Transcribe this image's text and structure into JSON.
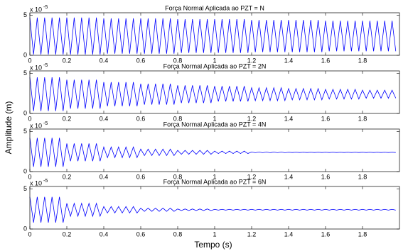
{
  "xlabel": "Tempo (s)",
  "ylabel": "Amplitude (m)",
  "chart_data": [
    {
      "type": "line",
      "title": "Força Normal Aplicada ao PZT = N",
      "color": "#0000ff",
      "y_scale_base": "x 10",
      "y_scale_exponent": "-5",
      "xlim": [
        0,
        2
      ],
      "xticks": [
        0,
        0.2,
        0.4,
        0.6,
        0.8,
        1,
        1.2,
        1.4,
        1.6,
        1.8
      ],
      "ylim": [
        0,
        5.3
      ],
      "yticks": [
        0,
        5
      ],
      "x": [
        0,
        0.02,
        0.04,
        0.06,
        0.08,
        0.1,
        0.12,
        0.14,
        0.16,
        0.18,
        0.2,
        0.22,
        0.24,
        0.26,
        0.28,
        0.3,
        0.32,
        0.34,
        0.36,
        0.38,
        0.4,
        0.42,
        0.44,
        0.46,
        0.48,
        0.5,
        0.52,
        0.54,
        0.56,
        0.58,
        0.6,
        0.62,
        0.64,
        0.66,
        0.68,
        0.7,
        0.72,
        0.74,
        0.76,
        0.78,
        0.8,
        0.82,
        0.84,
        0.86,
        0.88,
        0.9,
        0.92,
        0.94,
        0.96,
        0.98,
        1,
        1.02,
        1.04,
        1.06,
        1.08,
        1.1,
        1.12,
        1.14,
        1.16,
        1.18,
        1.2,
        1.22,
        1.24,
        1.26,
        1.28,
        1.3,
        1.32,
        1.34,
        1.36,
        1.38,
        1.4,
        1.42,
        1.44,
        1.46,
        1.48,
        1.5,
        1.52,
        1.54,
        1.56,
        1.58,
        1.6,
        1.62,
        1.64,
        1.66,
        1.68,
        1.7,
        1.72,
        1.74,
        1.76,
        1.78,
        1.8,
        1.82,
        1.84,
        1.86,
        1.88,
        1.9,
        1.92,
        1.94,
        1.96,
        1.98
      ],
      "values": [
        4.7,
        0.1,
        4.7,
        0.1,
        4.7,
        0.1,
        4.7,
        0.1,
        4.7,
        0.1,
        4.7,
        0.1,
        4.7,
        0.1,
        4.7,
        0.1,
        4.7,
        0.1,
        4.7,
        0.1,
        4.6,
        0.2,
        4.6,
        0.2,
        4.6,
        0.2,
        4.6,
        0.2,
        4.6,
        0.2,
        4.6,
        0.2,
        4.6,
        0.2,
        4.6,
        0.2,
        4.6,
        0.2,
        4.6,
        0.2,
        4.5,
        0.3,
        4.5,
        0.3,
        4.5,
        0.3,
        4.5,
        0.3,
        4.5,
        0.3,
        4.5,
        0.3,
        4.5,
        0.3,
        4.5,
        0.3,
        4.5,
        0.3,
        4.5,
        0.3,
        4.4,
        0.4,
        4.4,
        0.4,
        4.4,
        0.4,
        4.4,
        0.4,
        4.4,
        0.4,
        4.4,
        0.4,
        4.4,
        0.4,
        4.4,
        0.4,
        4.4,
        0.4,
        4.4,
        0.4,
        4.3,
        0.5,
        4.3,
        0.5,
        4.3,
        0.5,
        4.3,
        0.5,
        4.3,
        0.5,
        4.3,
        0.5,
        4.3,
        0.5,
        4.3,
        0.5,
        4.3,
        0.5,
        4.3,
        0.5
      ]
    },
    {
      "type": "line",
      "title": "Força Normal Aplicada ao PZT = 2N",
      "color": "#0000ff",
      "y_scale_base": "x 10",
      "y_scale_exponent": "-5",
      "xlim": [
        0,
        2
      ],
      "xticks": [
        0,
        0.2,
        0.4,
        0.6,
        0.8,
        1,
        1.2,
        1.4,
        1.6,
        1.8
      ],
      "ylim": [
        0,
        5.3
      ],
      "yticks": [
        0,
        5
      ],
      "x": [
        0,
        0.02,
        0.04,
        0.06,
        0.08,
        0.1,
        0.12,
        0.14,
        0.16,
        0.18,
        0.2,
        0.22,
        0.24,
        0.26,
        0.28,
        0.3,
        0.32,
        0.34,
        0.36,
        0.38,
        0.4,
        0.42,
        0.44,
        0.46,
        0.48,
        0.5,
        0.52,
        0.54,
        0.56,
        0.58,
        0.6,
        0.62,
        0.64,
        0.66,
        0.68,
        0.7,
        0.72,
        0.74,
        0.76,
        0.78,
        0.8,
        0.82,
        0.84,
        0.86,
        0.88,
        0.9,
        0.92,
        0.94,
        0.96,
        0.98,
        1,
        1.02,
        1.04,
        1.06,
        1.08,
        1.1,
        1.12,
        1.14,
        1.16,
        1.18,
        1.2,
        1.22,
        1.24,
        1.26,
        1.28,
        1.3,
        1.32,
        1.34,
        1.36,
        1.38,
        1.4,
        1.42,
        1.44,
        1.46,
        1.48,
        1.5,
        1.52,
        1.54,
        1.56,
        1.58,
        1.6,
        1.62,
        1.64,
        1.66,
        1.68,
        1.7,
        1.72,
        1.74,
        1.76,
        1.78,
        1.8,
        1.82,
        1.84,
        1.86,
        1.88,
        1.9,
        1.92,
        1.94,
        1.96,
        1.98
      ],
      "values": [
        4.5,
        0.3,
        4.5,
        0.3,
        4.5,
        0.3,
        4.5,
        0.3,
        4.5,
        0.3,
        4.2,
        0.6,
        4.2,
        0.6,
        4.2,
        0.6,
        4.2,
        0.6,
        4.2,
        0.6,
        3.9,
        0.9,
        3.9,
        0.9,
        3.9,
        0.9,
        3.9,
        0.9,
        3.9,
        0.9,
        3.7,
        1.1,
        3.7,
        1.1,
        3.7,
        1.1,
        3.7,
        1.1,
        3.7,
        1.1,
        3.5,
        1.3,
        3.5,
        1.3,
        3.5,
        1.3,
        3.5,
        1.3,
        3.5,
        1.3,
        3.4,
        1.5,
        3.4,
        1.5,
        3.4,
        1.5,
        3.4,
        1.5,
        3.4,
        1.5,
        3.2,
        1.6,
        3.2,
        1.6,
        3.2,
        1.6,
        3.2,
        1.6,
        3.2,
        1.6,
        3.1,
        1.7,
        3.1,
        1.7,
        3.1,
        1.7,
        3.1,
        1.7,
        3.1,
        1.7,
        3.0,
        1.8,
        3.0,
        1.8,
        3.0,
        1.8,
        3.0,
        1.8,
        3.0,
        1.8,
        2.9,
        1.9,
        2.9,
        1.9,
        2.9,
        1.9,
        2.9,
        1.9,
        2.9,
        1.9
      ]
    },
    {
      "type": "line",
      "title": "Força Normal Aplicada ao PZT = 4N",
      "color": "#0000ff",
      "y_scale_base": "x 10",
      "y_scale_exponent": "-5",
      "xlim": [
        0,
        2
      ],
      "xticks": [
        0,
        0.2,
        0.4,
        0.6,
        0.8,
        1,
        1.2,
        1.4,
        1.6,
        1.8
      ],
      "ylim": [
        0,
        5.3
      ],
      "yticks": [
        0,
        5
      ],
      "x": [
        0,
        0.02,
        0.04,
        0.06,
        0.08,
        0.1,
        0.12,
        0.14,
        0.16,
        0.18,
        0.2,
        0.22,
        0.24,
        0.26,
        0.28,
        0.3,
        0.32,
        0.34,
        0.36,
        0.38,
        0.4,
        0.42,
        0.44,
        0.46,
        0.48,
        0.5,
        0.52,
        0.54,
        0.56,
        0.58,
        0.6,
        0.62,
        0.64,
        0.66,
        0.68,
        0.7,
        0.72,
        0.74,
        0.76,
        0.78,
        0.8,
        0.82,
        0.84,
        0.86,
        0.88,
        0.9,
        0.92,
        0.94,
        0.96,
        0.98,
        1,
        1.02,
        1.04,
        1.06,
        1.08,
        1.1,
        1.12,
        1.14,
        1.16,
        1.18,
        1.2,
        1.22,
        1.24,
        1.26,
        1.28,
        1.3,
        1.32,
        1.34,
        1.36,
        1.38,
        1.4,
        1.42,
        1.44,
        1.46,
        1.48,
        1.5,
        1.52,
        1.54,
        1.56,
        1.58,
        1.6,
        1.62,
        1.64,
        1.66,
        1.68,
        1.7,
        1.72,
        1.74,
        1.76,
        1.78,
        1.8,
        1.82,
        1.84,
        1.86,
        1.88,
        1.9,
        1.92,
        1.94,
        1.96,
        1.98
      ],
      "values": [
        4.2,
        0.6,
        4.2,
        0.6,
        4.2,
        0.6,
        4.2,
        0.6,
        4.2,
        0.6,
        3.5,
        1.3,
        3.5,
        1.3,
        3.5,
        1.3,
        3.5,
        1.3,
        3.5,
        1.3,
        3.06,
        1.74,
        3.06,
        1.74,
        3.06,
        1.74,
        3.06,
        1.74,
        3.06,
        1.74,
        2.8,
        2.0,
        2.8,
        2.0,
        2.8,
        2.0,
        2.8,
        2.0,
        2.8,
        2.0,
        2.64,
        2.16,
        2.64,
        2.16,
        2.64,
        2.16,
        2.64,
        2.16,
        2.64,
        2.16,
        2.55,
        2.25,
        2.55,
        2.25,
        2.55,
        2.25,
        2.55,
        2.25,
        2.55,
        2.25,
        2.45,
        2.35,
        2.45,
        2.35,
        2.45,
        2.35,
        2.45,
        2.35,
        2.45,
        2.35,
        2.42,
        2.38,
        2.42,
        2.38,
        2.42,
        2.38,
        2.42,
        2.38,
        2.42,
        2.38,
        2.42,
        2.38,
        2.42,
        2.38,
        2.42,
        2.38,
        2.42,
        2.38,
        2.42,
        2.38,
        2.42,
        2.38,
        2.42,
        2.38,
        2.42,
        2.38,
        2.42,
        2.38,
        2.42,
        2.38
      ]
    },
    {
      "type": "line",
      "title": "Força Normal Aplicada ao PZT = 6N",
      "color": "#0000ff",
      "y_scale_base": "x 10",
      "y_scale_exponent": "-5",
      "xlim": [
        0,
        2
      ],
      "xticks": [
        0,
        0.2,
        0.4,
        0.6,
        0.8,
        1,
        1.2,
        1.4,
        1.6,
        1.8
      ],
      "ylim": [
        0,
        5.3
      ],
      "yticks": [
        0,
        5
      ],
      "x": [
        0,
        0.02,
        0.04,
        0.06,
        0.08,
        0.1,
        0.12,
        0.14,
        0.16,
        0.18,
        0.2,
        0.22,
        0.24,
        0.26,
        0.28,
        0.3,
        0.32,
        0.34,
        0.36,
        0.38,
        0.4,
        0.42,
        0.44,
        0.46,
        0.48,
        0.5,
        0.52,
        0.54,
        0.56,
        0.58,
        0.6,
        0.62,
        0.64,
        0.66,
        0.68,
        0.7,
        0.72,
        0.74,
        0.76,
        0.78,
        0.8,
        0.82,
        0.84,
        0.86,
        0.88,
        0.9,
        0.92,
        0.94,
        0.96,
        0.98,
        1,
        1.02,
        1.04,
        1.06,
        1.08,
        1.1,
        1.12,
        1.14,
        1.16,
        1.18,
        1.2,
        1.22,
        1.24,
        1.26,
        1.28,
        1.3,
        1.32,
        1.34,
        1.36,
        1.38,
        1.4,
        1.42,
        1.44,
        1.46,
        1.48,
        1.5,
        1.52,
        1.54,
        1.56,
        1.58,
        1.6,
        1.62,
        1.64,
        1.66,
        1.68,
        1.7,
        1.72,
        1.74,
        1.76,
        1.78,
        1.8,
        1.82,
        1.84,
        1.86,
        1.88,
        1.9,
        1.92,
        1.94,
        1.96,
        1.98
      ],
      "values": [
        4.0,
        0.8,
        4.0,
        0.8,
        4.0,
        0.8,
        4.0,
        0.8,
        4.0,
        0.8,
        3.2,
        1.6,
        3.2,
        1.6,
        3.2,
        1.6,
        3.2,
        1.6,
        3.2,
        1.6,
        2.8,
        2.0,
        2.8,
        2.0,
        2.8,
        2.0,
        2.8,
        2.0,
        2.8,
        2.0,
        2.6,
        2.2,
        2.6,
        2.2,
        2.6,
        2.2,
        2.6,
        2.2,
        2.6,
        2.2,
        2.5,
        2.3,
        2.5,
        2.3,
        2.5,
        2.3,
        2.5,
        2.3,
        2.5,
        2.3,
        2.45,
        2.35,
        2.45,
        2.35,
        2.45,
        2.35,
        2.45,
        2.35,
        2.45,
        2.35,
        2.45,
        2.35,
        2.45,
        2.35,
        2.45,
        2.35,
        2.45,
        2.35,
        2.45,
        2.35,
        2.45,
        2.35,
        2.45,
        2.35,
        2.45,
        2.35,
        2.45,
        2.35,
        2.45,
        2.35,
        2.45,
        2.35,
        2.45,
        2.35,
        2.45,
        2.35,
        2.45,
        2.35,
        2.45,
        2.35,
        2.45,
        2.35,
        2.45,
        2.35,
        2.45,
        2.35,
        2.45,
        2.35,
        2.45,
        2.35
      ]
    }
  ]
}
